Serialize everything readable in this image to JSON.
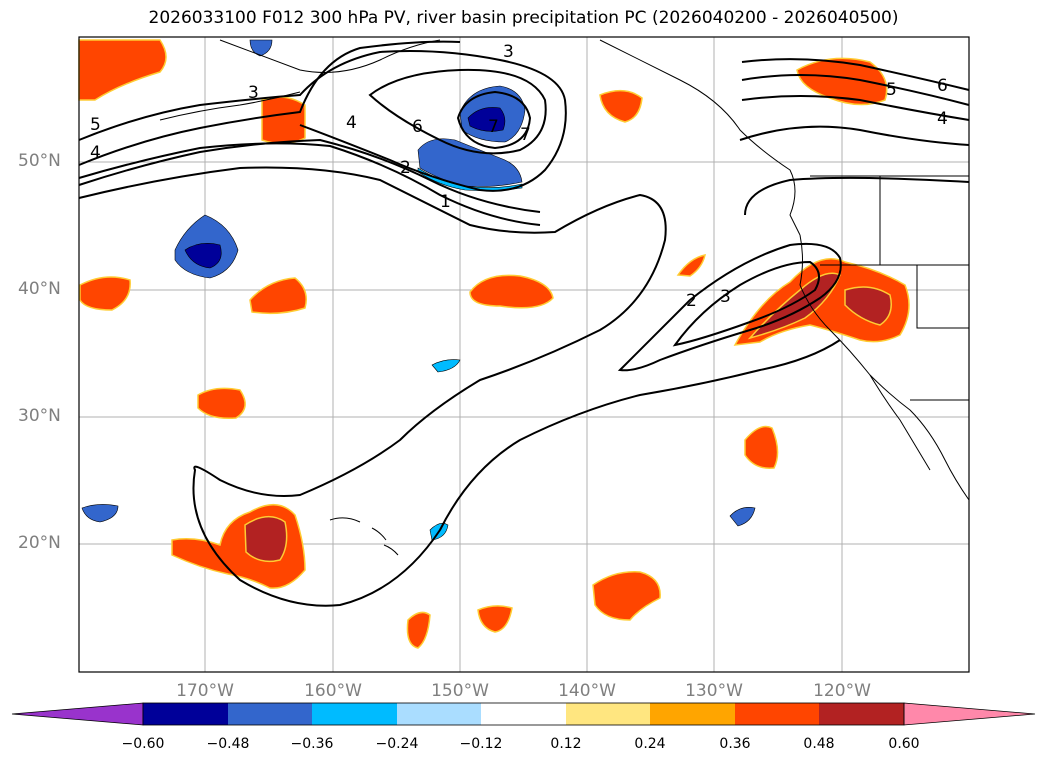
{
  "title": "2026033100 F012 300 hPa PV, river basin precipitation PC (2026040200 - 2026040500)",
  "map": {
    "lat_labels": [
      "50°N",
      "40°N",
      "30°N",
      "20°N"
    ],
    "lon_labels": [
      "170°W",
      "160°W",
      "150°W",
      "140°W",
      "130°W",
      "120°W"
    ],
    "contour_labels": [
      "3",
      "3",
      "4",
      "5",
      "4",
      "6",
      "7",
      "7",
      "2",
      "1",
      "2",
      "3",
      "5",
      "6",
      "4"
    ]
  },
  "colorbar": {
    "ticks": [
      "−0.60",
      "−0.48",
      "−0.36",
      "−0.24",
      "−0.12",
      "0.12",
      "0.24",
      "0.36",
      "0.48",
      "0.60"
    ],
    "colors": [
      "#9933cc",
      "#000099",
      "#3366cc",
      "#00bbff",
      "#aaddff",
      "#ffffff",
      "#ffe680",
      "#ffa500",
      "#ff4500",
      "#b22222",
      "#ff88aa",
      "#ff88aa"
    ]
  },
  "colors": {
    "grid": "#b0b0b0",
    "contour": "#000000",
    "coast": "#000000",
    "positive_strong": "#b22222",
    "positive": "#ff4500",
    "positive_weak": "#ffa500",
    "negative_strong": "#000099",
    "negative": "#3366cc",
    "negative_weak": "#00bbff"
  }
}
